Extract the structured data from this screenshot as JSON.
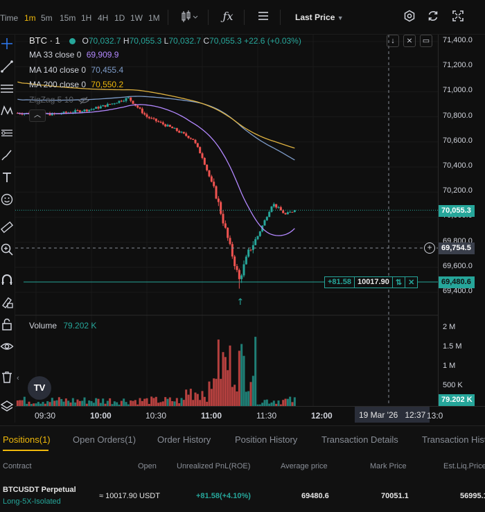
{
  "toolbar": {
    "timeframes": [
      "Time",
      "1m",
      "5m",
      "15m",
      "1H",
      "4H",
      "1D",
      "1W",
      "1M"
    ],
    "active_timeframe": "1m",
    "fx_icon": "function-icon",
    "price_type": "Last Price"
  },
  "legend": {
    "symbol": "BTC · 1",
    "o_label": "O",
    "o": "70,032.7",
    "h_label": "H",
    "h": "70,055.3",
    "l_label": "L",
    "l": "70,032.7",
    "c_label": "C",
    "c": "70,055.3",
    "change": "+22.6 (+0.03%)",
    "ma33_label": "MA 33 close 0",
    "ma33": "69,909.9",
    "ma140_label": "MA 140 close 0",
    "ma140": "70,455.4",
    "ma200_label": "MA 200 close 0",
    "ma200": "70,550.2",
    "zigzag": "ZigZag 5 10"
  },
  "colors": {
    "up": "#26a69a",
    "down": "#ef5350",
    "ma33": "#b388ff",
    "ma140": "#7e9cc9",
    "ma200": "#e0b341",
    "accent": "#f0b90b"
  },
  "yaxis": {
    "ticks": [
      "71,400.0",
      "71,200.0",
      "71,000.0",
      "70,800.0",
      "70,600.0",
      "70,400.0",
      "70,200.0",
      "70,000.0",
      "69,800.0",
      "69,600.0",
      "69,400.0"
    ],
    "last_price": "70,055.3",
    "crosshair_price": "69,754.5",
    "position_price": "69,480.6"
  },
  "position_line": {
    "pnl": "+81.58",
    "size": "10017.90"
  },
  "volume": {
    "label": "Volume",
    "value": "79.202 K",
    "ticks": [
      "2 M",
      "1.5 M",
      "1 M",
      "500 K"
    ],
    "last": "79.202 K"
  },
  "xaxis": {
    "ticks": [
      "09:30",
      "10:00",
      "10:30",
      "11:00",
      "11:30",
      "12:00"
    ],
    "crosshair_label": "19 Mar '26   12:37",
    "cut_label": "13:0"
  },
  "bottom": {
    "tabs": [
      "Positions(1)",
      "Open Orders(1)",
      "Order History",
      "Position History",
      "Transaction Details",
      "Transaction Hist"
    ],
    "headers": [
      "Contract",
      "Open",
      "Unrealized PnL(ROE)",
      "Average price",
      "Mark Price",
      "Est.Liq.Price"
    ],
    "row": {
      "contract": "BTCUSDT Perpetual",
      "mode": "Long-5X-Isolated",
      "open": "≈ 10017.90 USDT",
      "pnl": "+81.58(+4.10%)",
      "avg": "69480.6",
      "mark": "70051.1",
      "liq": "56995.1"
    }
  },
  "chart_data": {
    "type": "candlestick",
    "x_ticks": [
      "09:30",
      "10:00",
      "10:30",
      "11:00",
      "11:30",
      "12:00"
    ],
    "ylim": [
      69300,
      71500
    ],
    "price_checkpoints": [
      {
        "time": "09:20",
        "price": 70830
      },
      {
        "time": "09:40",
        "price": 70820
      },
      {
        "time": "10:00",
        "price": 70860
      },
      {
        "time": "10:10",
        "price": 70900
      },
      {
        "time": "10:20",
        "price": 70950
      },
      {
        "time": "10:30",
        "price": 70800
      },
      {
        "time": "10:45",
        "price": 70700
      },
      {
        "time": "10:55",
        "price": 70620
      },
      {
        "time": "11:00",
        "price": 70480
      },
      {
        "time": "11:08",
        "price": 70150
      },
      {
        "time": "11:15",
        "price": 69760
      },
      {
        "time": "11:20",
        "price": 69500
      },
      {
        "time": "11:25",
        "price": 69720
      },
      {
        "time": "11:30",
        "price": 69850
      },
      {
        "time": "11:38",
        "price": 70110
      },
      {
        "time": "11:45",
        "price": 70020
      },
      {
        "time": "11:50",
        "price": 70055.3
      }
    ],
    "ma33_end": 69909.9,
    "ma140_end": 70455.4,
    "ma200_end": 70550.2
  }
}
